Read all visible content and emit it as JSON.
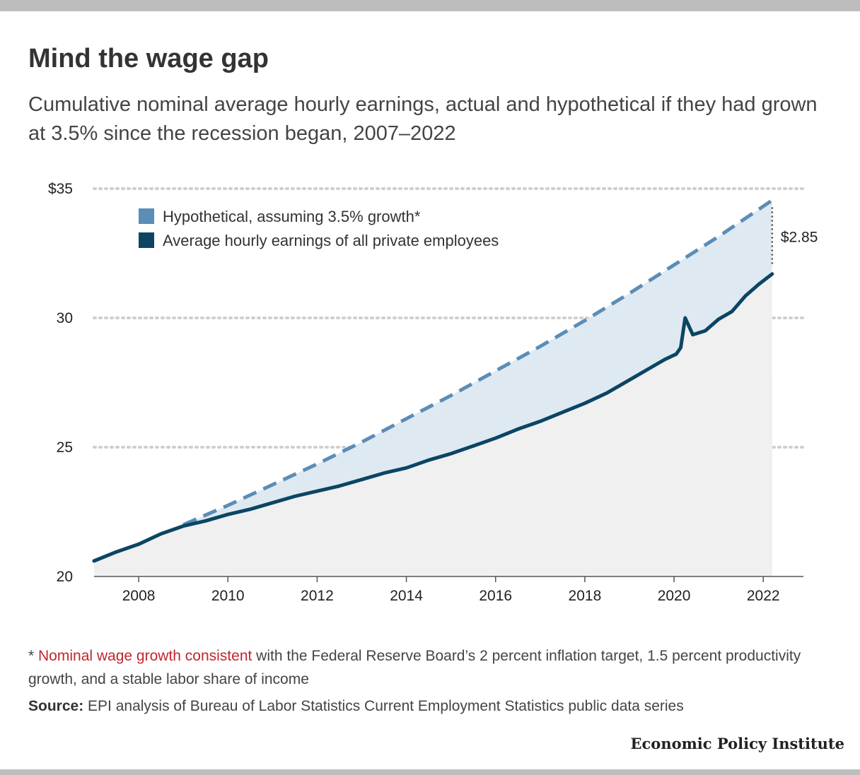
{
  "header": {
    "title": "Mind the wage gap",
    "subtitle": "Cumulative nominal average hourly earnings, actual and hypothetical if they had grown at 3.5% since the recession began, 2007–2022"
  },
  "footnote": {
    "asterisk": "* ",
    "link_text": "Nominal wage growth consistent",
    "rest": " with the Federal Reserve Board’s 2 percent inflation target, 1.5 percent productivity growth, and a stable labor share of income"
  },
  "source": {
    "label": "Source:",
    "text": " EPI analysis of Bureau of Labor Statistics Current Employment Statistics public data series"
  },
  "brand": "Economic Policy Institute",
  "colors": {
    "hypothetical": "#5b8db6",
    "actual": "#0b4563",
    "gap_fill": "#dfe9f2",
    "under_fill": "#f0f0f0",
    "footnote_link": "#c0272d"
  },
  "chart_data": {
    "type": "line",
    "title": "Mind the wage gap",
    "xlabel": "",
    "ylabel": "",
    "xlim": [
      2007.0,
      2022.9
    ],
    "ylim": [
      20,
      35
    ],
    "x_ticks": [
      2008,
      2010,
      2012,
      2014,
      2016,
      2018,
      2020,
      2022
    ],
    "y_ticks": [
      {
        "value": 20,
        "label": "20"
      },
      {
        "value": 25,
        "label": "25"
      },
      {
        "value": 30,
        "label": "30"
      },
      {
        "value": 35,
        "label": "$35"
      }
    ],
    "grid": "horizontal dotted",
    "legend_position": "top-left",
    "gap_annotation": {
      "x": 2022.2,
      "label": "$2.85"
    },
    "series": [
      {
        "name": "Hypothetical, assuming 3.5% growth*",
        "style": "dashed",
        "x": [
          2009.0,
          2010.0,
          2011.0,
          2012.0,
          2013.0,
          2014.0,
          2015.0,
          2016.0,
          2017.0,
          2018.0,
          2019.0,
          2020.0,
          2021.0,
          2022.2
        ],
        "y": [
          22.0,
          22.75,
          23.55,
          24.35,
          25.2,
          26.1,
          27.0,
          27.95,
          28.9,
          29.9,
          30.95,
          32.05,
          33.15,
          34.55
        ]
      },
      {
        "name": "Average hourly earnings of all private employees",
        "style": "solid",
        "x": [
          2007.0,
          2007.5,
          2008.0,
          2008.5,
          2009.0,
          2009.5,
          2010.0,
          2010.5,
          2011.0,
          2011.5,
          2012.0,
          2012.5,
          2013.0,
          2013.5,
          2014.0,
          2014.5,
          2015.0,
          2015.5,
          2016.0,
          2016.5,
          2017.0,
          2017.5,
          2018.0,
          2018.5,
          2019.0,
          2019.5,
          2019.8,
          2020.05,
          2020.15,
          2020.25,
          2020.42,
          2020.7,
          2021.0,
          2021.3,
          2021.6,
          2021.9,
          2022.2
        ],
        "y": [
          20.6,
          20.95,
          21.25,
          21.65,
          21.95,
          22.15,
          22.4,
          22.6,
          22.85,
          23.1,
          23.3,
          23.5,
          23.75,
          24.0,
          24.2,
          24.5,
          24.75,
          25.05,
          25.35,
          25.7,
          26.0,
          26.35,
          26.7,
          27.1,
          27.6,
          28.1,
          28.4,
          28.6,
          28.85,
          30.0,
          29.35,
          29.5,
          29.95,
          30.25,
          30.85,
          31.3,
          31.7
        ]
      }
    ]
  }
}
